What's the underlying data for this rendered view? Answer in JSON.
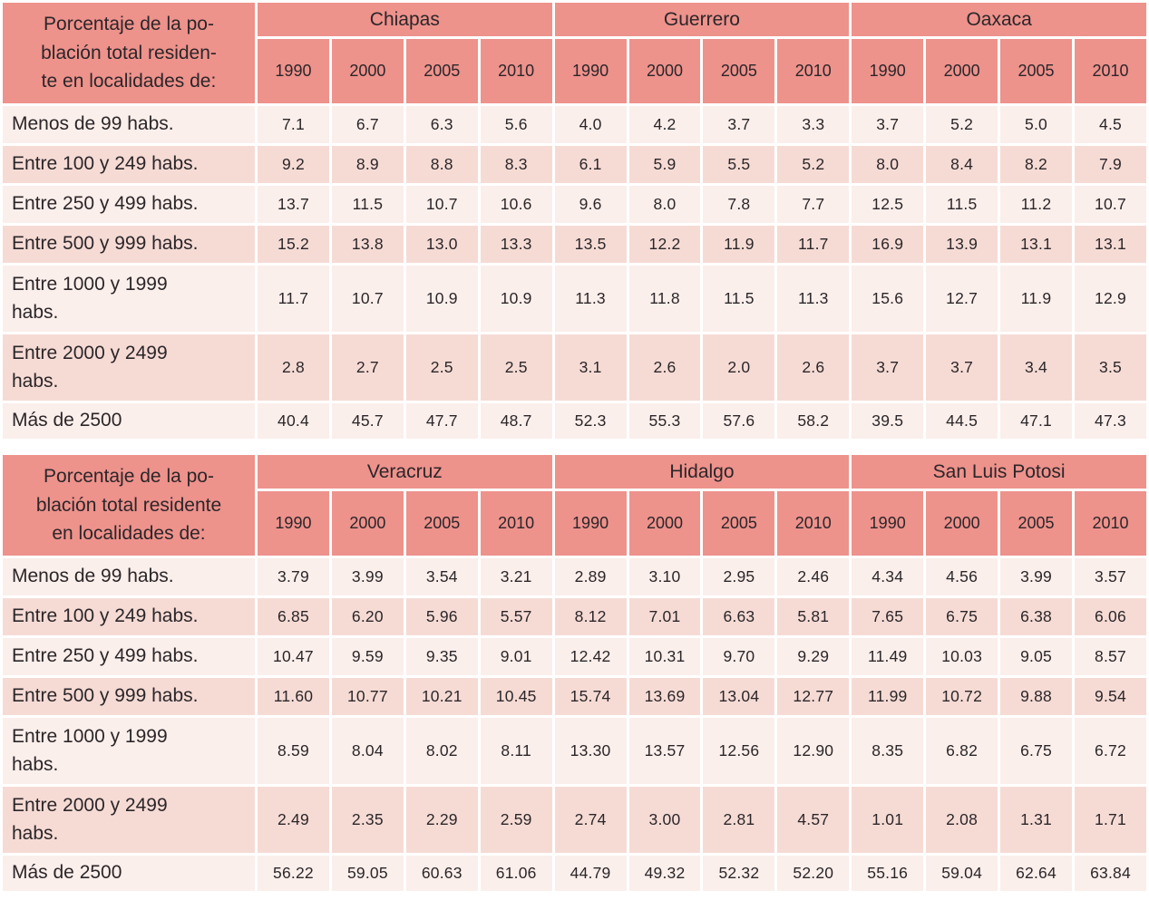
{
  "colors": {
    "header": "#ee928c",
    "row_light": "#fbefeb",
    "row_dark": "#f6dbd5",
    "grid": "#ffffff",
    "text": "#2b2629"
  },
  "tables": [
    {
      "corner_label": "Porcentaje de la po-\nblación total residen-\nte en localidades de:",
      "states": [
        "Chiapas",
        "Guerrero",
        "Oaxaca"
      ],
      "years": [
        "1990",
        "2000",
        "2005",
        "2010"
      ],
      "rows": [
        {
          "label": "Menos de 99 habs.",
          "values": [
            "7.1",
            "6.7",
            "6.3",
            "5.6",
            "4.0",
            "4.2",
            "3.7",
            "3.3",
            "3.7",
            "5.2",
            "5.0",
            "4.5"
          ]
        },
        {
          "label": "Entre 100 y 249 habs.",
          "values": [
            "9.2",
            "8.9",
            "8.8",
            "8.3",
            "6.1",
            "5.9",
            "5.5",
            "5.2",
            "8.0",
            "8.4",
            "8.2",
            "7.9"
          ]
        },
        {
          "label": "Entre 250 y 499 habs.",
          "values": [
            "13.7",
            "11.5",
            "10.7",
            "10.6",
            "9.6",
            "8.0",
            "7.8",
            "7.7",
            "12.5",
            "11.5",
            "11.2",
            "10.7"
          ]
        },
        {
          "label": "Entre 500 y 999 habs.",
          "values": [
            "15.2",
            "13.8",
            "13.0",
            "13.3",
            "13.5",
            "12.2",
            "11.9",
            "11.7",
            "16.9",
            "13.9",
            "13.1",
            "13.1"
          ]
        },
        {
          "label": "Entre 1000 y 1999\nhabs.",
          "values": [
            "11.7",
            "10.7",
            "10.9",
            "10.9",
            "11.3",
            "11.8",
            "11.5",
            "11.3",
            "15.6",
            "12.7",
            "11.9",
            "12.9"
          ]
        },
        {
          "label": "Entre 2000 y 2499\nhabs.",
          "values": [
            "2.8",
            "2.7",
            "2.5",
            "2.5",
            "3.1",
            "2.6",
            "2.0",
            "2.6",
            "3.7",
            "3.7",
            "3.4",
            "3.5"
          ]
        },
        {
          "label": "Más de 2500",
          "values": [
            "40.4",
            "45.7",
            "47.7",
            "48.7",
            "52.3",
            "55.3",
            "57.6",
            "58.2",
            "39.5",
            "44.5",
            "47.1",
            "47.3"
          ]
        }
      ]
    },
    {
      "corner_label": "Porcentaje de la po-\nblación total residente\nen localidades de:",
      "states": [
        "Veracruz",
        "Hidalgo",
        "San Luis Potosi"
      ],
      "years": [
        "1990",
        "2000",
        "2005",
        "2010"
      ],
      "rows": [
        {
          "label": "Menos de 99 habs.",
          "values": [
            "3.79",
            "3.99",
            "3.54",
            "3.21",
            "2.89",
            "3.10",
            "2.95",
            "2.46",
            "4.34",
            "4.56",
            "3.99",
            "3.57"
          ]
        },
        {
          "label": "Entre 100 y 249 habs.",
          "values": [
            "6.85",
            "6.20",
            "5.96",
            "5.57",
            "8.12",
            "7.01",
            "6.63",
            "5.81",
            "7.65",
            "6.75",
            "6.38",
            "6.06"
          ]
        },
        {
          "label": "Entre 250 y 499 habs.",
          "values": [
            "10.47",
            "9.59",
            "9.35",
            "9.01",
            "12.42",
            "10.31",
            "9.70",
            "9.29",
            "11.49",
            "10.03",
            "9.05",
            "8.57"
          ]
        },
        {
          "label": "Entre 500 y 999 habs.",
          "values": [
            "11.60",
            "10.77",
            "10.21",
            "10.45",
            "15.74",
            "13.69",
            "13.04",
            "12.77",
            "11.99",
            "10.72",
            "9.88",
            "9.54"
          ]
        },
        {
          "label": "Entre 1000 y 1999\nhabs.",
          "values": [
            "8.59",
            "8.04",
            "8.02",
            "8.11",
            "13.30",
            "13.57",
            "12.56",
            "12.90",
            "8.35",
            "6.82",
            "6.75",
            "6.72"
          ]
        },
        {
          "label": "Entre 2000 y 2499\nhabs.",
          "values": [
            "2.49",
            "2.35",
            "2.29",
            "2.59",
            "2.74",
            "3.00",
            "2.81",
            "4.57",
            "1.01",
            "2.08",
            "1.31",
            "1.71"
          ]
        },
        {
          "label": "Más de 2500",
          "values": [
            "56.22",
            "59.05",
            "60.63",
            "61.06",
            "44.79",
            "49.32",
            "52.32",
            "52.20",
            "55.16",
            "59.04",
            "62.64",
            "63.84"
          ]
        }
      ]
    }
  ],
  "chart_data": [
    {
      "type": "table",
      "title": "Porcentaje de la población total residente en localidades de:",
      "categories": [
        "Menos de 99 habs.",
        "Entre 100 y 249 habs.",
        "Entre 250 y 499 habs.",
        "Entre 500 y 999 habs.",
        "Entre 1000 y 1999 habs.",
        "Entre 2000 y 2499 habs.",
        "Más de 2500"
      ],
      "columns": [
        "1990",
        "2000",
        "2005",
        "2010"
      ],
      "series": [
        {
          "name": "Chiapas",
          "values": [
            [
              7.1,
              6.7,
              6.3,
              5.6
            ],
            [
              9.2,
              8.9,
              8.8,
              8.3
            ],
            [
              13.7,
              11.5,
              10.7,
              10.6
            ],
            [
              15.2,
              13.8,
              13.0,
              13.3
            ],
            [
              11.7,
              10.7,
              10.9,
              10.9
            ],
            [
              2.8,
              2.7,
              2.5,
              2.5
            ],
            [
              40.4,
              45.7,
              47.7,
              48.7
            ]
          ]
        },
        {
          "name": "Guerrero",
          "values": [
            [
              4.0,
              4.2,
              3.7,
              3.3
            ],
            [
              6.1,
              5.9,
              5.5,
              5.2
            ],
            [
              9.6,
              8.0,
              7.8,
              7.7
            ],
            [
              13.5,
              12.2,
              11.9,
              11.7
            ],
            [
              11.3,
              11.8,
              11.5,
              11.3
            ],
            [
              3.1,
              2.6,
              2.0,
              2.6
            ],
            [
              52.3,
              55.3,
              57.6,
              58.2
            ]
          ]
        },
        {
          "name": "Oaxaca",
          "values": [
            [
              3.7,
              5.2,
              5.0,
              4.5
            ],
            [
              8.0,
              8.4,
              8.2,
              7.9
            ],
            [
              12.5,
              11.5,
              11.2,
              10.7
            ],
            [
              16.9,
              13.9,
              13.1,
              13.1
            ],
            [
              15.6,
              12.7,
              11.9,
              12.9
            ],
            [
              3.7,
              3.7,
              3.4,
              3.5
            ],
            [
              39.5,
              44.5,
              47.1,
              47.3
            ]
          ]
        }
      ]
    },
    {
      "type": "table",
      "title": "Porcentaje de la población total residente en localidades de:",
      "categories": [
        "Menos de 99 habs.",
        "Entre 100 y 249 habs.",
        "Entre 250 y 499 habs.",
        "Entre 500 y 999 habs.",
        "Entre 1000 y 1999 habs.",
        "Entre 2000 y 2499 habs.",
        "Más de 2500"
      ],
      "columns": [
        "1990",
        "2000",
        "2005",
        "2010"
      ],
      "series": [
        {
          "name": "Veracruz",
          "values": [
            [
              3.79,
              3.99,
              3.54,
              3.21
            ],
            [
              6.85,
              6.2,
              5.96,
              5.57
            ],
            [
              10.47,
              9.59,
              9.35,
              9.01
            ],
            [
              11.6,
              10.77,
              10.21,
              10.45
            ],
            [
              8.59,
              8.04,
              8.02,
              8.11
            ],
            [
              2.49,
              2.35,
              2.29,
              2.59
            ],
            [
              56.22,
              59.05,
              60.63,
              61.06
            ]
          ]
        },
        {
          "name": "Hidalgo",
          "values": [
            [
              2.89,
              3.1,
              2.95,
              2.46
            ],
            [
              8.12,
              7.01,
              6.63,
              5.81
            ],
            [
              12.42,
              10.31,
              9.7,
              9.29
            ],
            [
              15.74,
              13.69,
              13.04,
              12.77
            ],
            [
              13.3,
              13.57,
              12.56,
              12.9
            ],
            [
              2.74,
              3.0,
              2.81,
              4.57
            ],
            [
              44.79,
              49.32,
              52.32,
              52.2
            ]
          ]
        },
        {
          "name": "San Luis Potosi",
          "values": [
            [
              4.34,
              4.56,
              3.99,
              3.57
            ],
            [
              7.65,
              6.75,
              6.38,
              6.06
            ],
            [
              11.49,
              10.03,
              9.05,
              8.57
            ],
            [
              11.99,
              10.72,
              9.88,
              9.54
            ],
            [
              8.35,
              6.82,
              6.75,
              6.72
            ],
            [
              1.01,
              2.08,
              1.31,
              1.71
            ],
            [
              55.16,
              59.04,
              62.64,
              63.84
            ]
          ]
        }
      ]
    }
  ]
}
